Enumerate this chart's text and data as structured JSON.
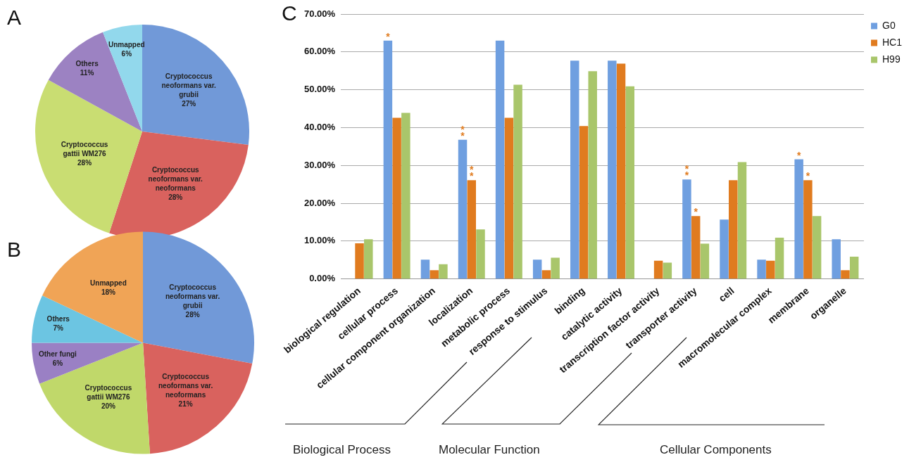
{
  "chart_data": [
    {
      "type": "pie",
      "title": "A",
      "categories": [
        "Cryptococcus neoformans var. grubii",
        "Cryptococcus neoformans var. neoformans",
        "Cryptococcus gattii WM276",
        "Others",
        "Unmapped"
      ],
      "values": [
        27,
        28,
        28,
        11,
        6
      ],
      "value_labels": [
        "27%",
        "28%",
        "28%",
        "11%",
        "6%"
      ],
      "colors": [
        "#7199d8",
        "#d9625e",
        "#c9dd72",
        "#9c82c2",
        "#92d8ec"
      ],
      "legend": false
    },
    {
      "type": "pie",
      "title": "B",
      "categories": [
        "Cryptococcus neoformans var. grubii",
        "Cryptococcus neoformans var. neoformans",
        "Cryptococcus gattii WM276",
        "Other fungi",
        "Others",
        "Unmapped"
      ],
      "values": [
        28,
        21,
        20,
        6,
        7,
        18
      ],
      "value_labels": [
        "28%",
        "21%",
        "20%",
        "6%",
        "7%",
        "18%"
      ],
      "colors": [
        "#7199d8",
        "#d9625e",
        "#c0d86a",
        "#9a80c4",
        "#6cc5e2",
        "#f0a456"
      ],
      "legend": false
    },
    {
      "type": "bar",
      "title": "C",
      "categories": [
        "biological regulation",
        "cellular process",
        "cellular component organization",
        "localization",
        "metabolic process",
        "response to stimulus",
        "binding",
        "catalytic activity",
        "transcription factor activity",
        "transporter activity",
        "cell",
        "macromolecular complex",
        "membrane",
        "organelle"
      ],
      "series": [
        {
          "name": "G0",
          "color": "#6f9fe0",
          "values": [
            0,
            63.0,
            5.1,
            36.8,
            63.0,
            5.1,
            57.7,
            57.7,
            0,
            26.3,
            15.7,
            5.1,
            31.6,
            10.5
          ]
        },
        {
          "name": "HC1",
          "color": "#e07b1f",
          "values": [
            9.4,
            42.6,
            2.3,
            26.1,
            42.6,
            2.3,
            40.4,
            56.9,
            4.8,
            16.6,
            26.1,
            4.8,
            26.1,
            2.3
          ]
        },
        {
          "name": "H99",
          "color": "#a9c66b",
          "values": [
            10.5,
            43.9,
            3.9,
            13.1,
            51.3,
            5.6,
            54.9,
            50.9,
            4.3,
            9.3,
            30.9,
            10.9,
            16.6,
            5.9
          ]
        }
      ],
      "ylim": [
        0,
        70
      ],
      "yticks": [
        {
          "value": 0,
          "label": "0.00%"
        },
        {
          "value": 10,
          "label": "10.00%"
        },
        {
          "value": 20,
          "label": "20.00%"
        },
        {
          "value": 30,
          "label": "30.00%"
        },
        {
          "value": 40,
          "label": "40.00%"
        },
        {
          "value": 50,
          "label": "50.00%"
        },
        {
          "value": 60,
          "label": "60.00%"
        },
        {
          "value": 70,
          "label": "70.00%"
        }
      ],
      "grid": "y",
      "legend": "top right",
      "annotations": [
        "*",
        "**",
        "**",
        "*",
        {
          "text": "**",
          "x": "localization",
          "y": 26.1
        },
        {
          "text": "*",
          "x": "transporter activity",
          "y": 16.6
        },
        {
          "text": "*",
          "x": "membrane",
          "y": 26.1
        },
        "Biological Process",
        "Molecular Function",
        "Cellular Components"
      ]
    }
  ]
}
